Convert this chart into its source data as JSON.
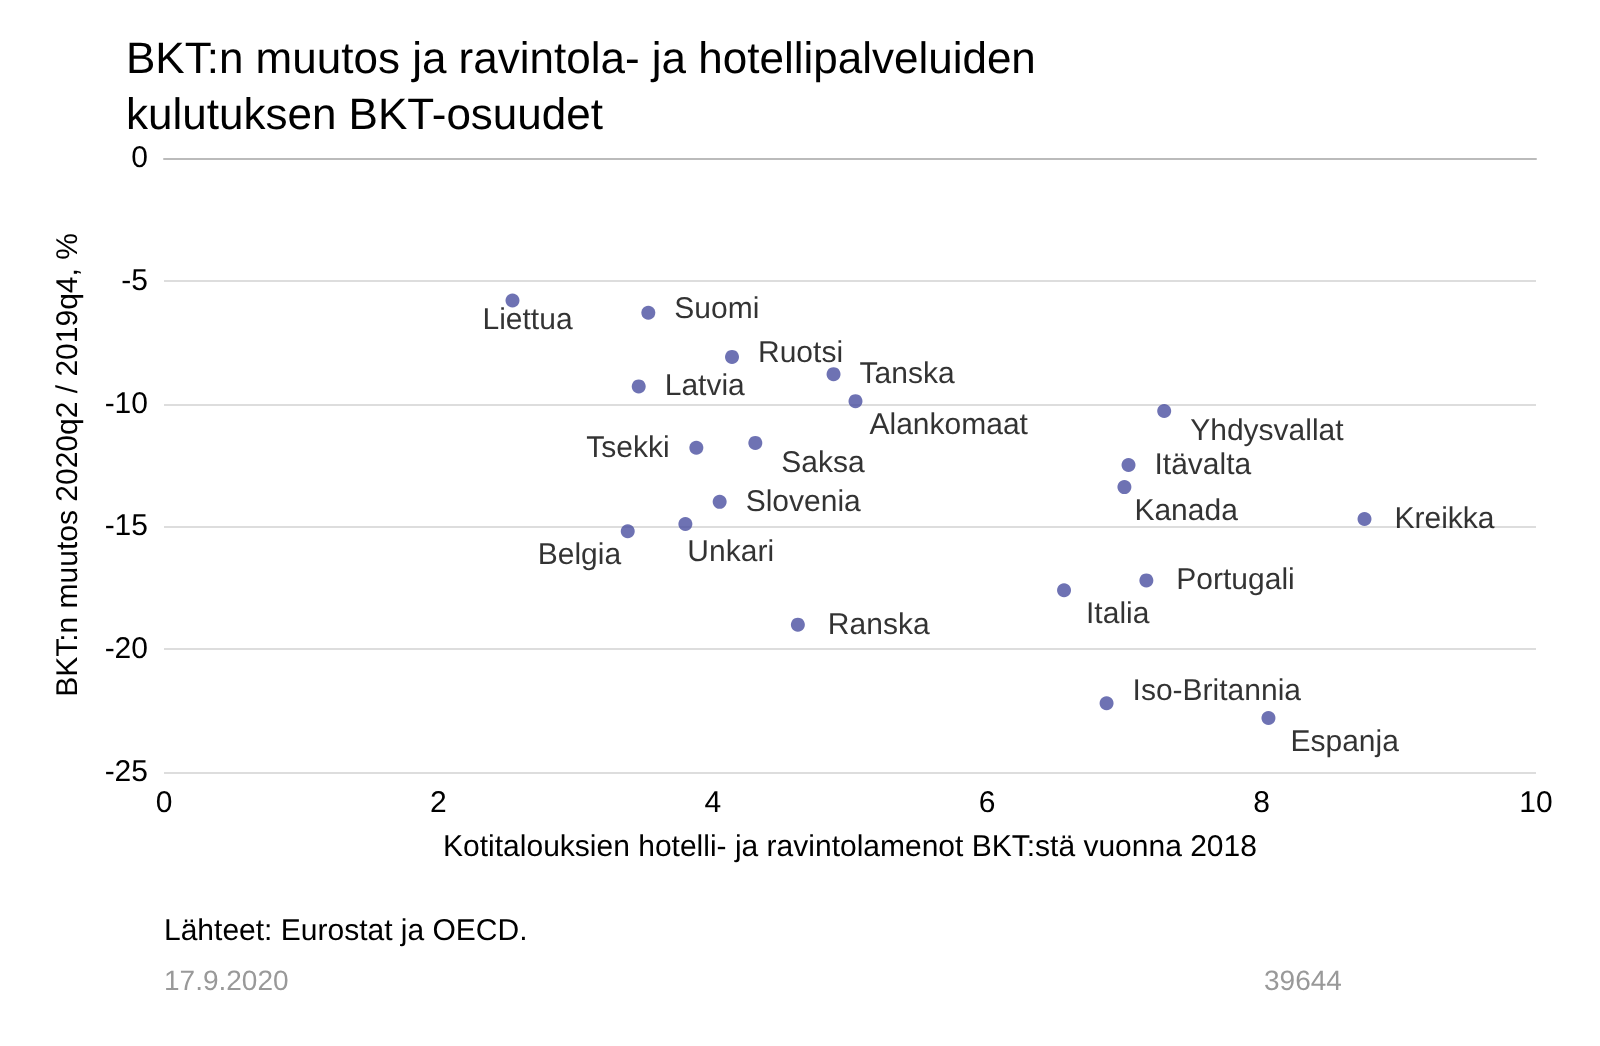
{
  "chart_data": {
    "type": "scatter",
    "title": "BKT:n muutos ja ravintola- ja hotellipalveluiden kulutuksen BKT-osuudet",
    "xlabel": "Kotitalouksien hotelli- ja ravintolamenot BKT:stä vuonna 2018",
    "ylabel": "BKT:n muutos 2020q2 / 2019q4, %",
    "x": [
      2.54,
      3.53,
      4.14,
      3.46,
      4.88,
      5.04,
      7.29,
      3.88,
      4.31,
      7.03,
      7.0,
      4.05,
      8.75,
      3.38,
      3.8,
      7.16,
      6.56,
      4.62,
      6.87,
      8.05
    ],
    "values": [
      -5.8,
      -6.3,
      -8.1,
      -9.3,
      -8.8,
      -9.9,
      -10.3,
      -11.8,
      -11.6,
      -12.5,
      -13.4,
      -14.0,
      -14.7,
      -15.2,
      -14.9,
      -17.2,
      -17.6,
      -19.0,
      -22.2,
      -22.8
    ],
    "color": "#4a4fa0",
    "marker": "circle",
    "grid": "y",
    "xlim": [
      0,
      10
    ],
    "xticks": [
      0,
      2,
      4,
      6,
      8,
      10
    ],
    "ylim": [
      -25,
      0
    ],
    "yticks": [
      -25,
      -20,
      -15,
      -10,
      -5,
      0
    ],
    "annotations": [
      {
        "text": "Liettua",
        "x": 2.54,
        "y": -5.8
      },
      {
        "text": "Suomi",
        "x": 3.53,
        "y": -6.3
      },
      {
        "text": "Ruotsi",
        "x": 4.14,
        "y": -8.1
      },
      {
        "text": "Latvia",
        "x": 3.46,
        "y": -9.3
      },
      {
        "text": "Tanska",
        "x": 4.88,
        "y": -8.8
      },
      {
        "text": "Alankomaat",
        "x": 5.04,
        "y": -9.9
      },
      {
        "text": "Yhdysvallat",
        "x": 7.29,
        "y": -10.3
      },
      {
        "text": "Tsekki",
        "x": 3.88,
        "y": -11.8
      },
      {
        "text": "Saksa",
        "x": 4.31,
        "y": -11.6
      },
      {
        "text": "Itävalta",
        "x": 7.03,
        "y": -12.5
      },
      {
        "text": "Kanada",
        "x": 7.0,
        "y": -13.4
      },
      {
        "text": "Slovenia",
        "x": 4.05,
        "y": -14.0
      },
      {
        "text": "Kreikka",
        "x": 8.75,
        "y": -14.7
      },
      {
        "text": "Belgia",
        "x": 3.38,
        "y": -15.2
      },
      {
        "text": "Unkari",
        "x": 3.8,
        "y": -14.9
      },
      {
        "text": "Portugali",
        "x": 7.16,
        "y": -17.2
      },
      {
        "text": "Italia",
        "x": 6.56,
        "y": -17.6
      },
      {
        "text": "Ranska",
        "x": 4.62,
        "y": -19.0
      },
      {
        "text": "Iso-Britannia",
        "x": 6.87,
        "y": -22.2
      },
      {
        "text": "Espanja",
        "x": 8.05,
        "y": -22.8
      },
      "Lähteet: Eurostat ja OECD.",
      "17.9.2020",
      "39644"
    ]
  }
}
